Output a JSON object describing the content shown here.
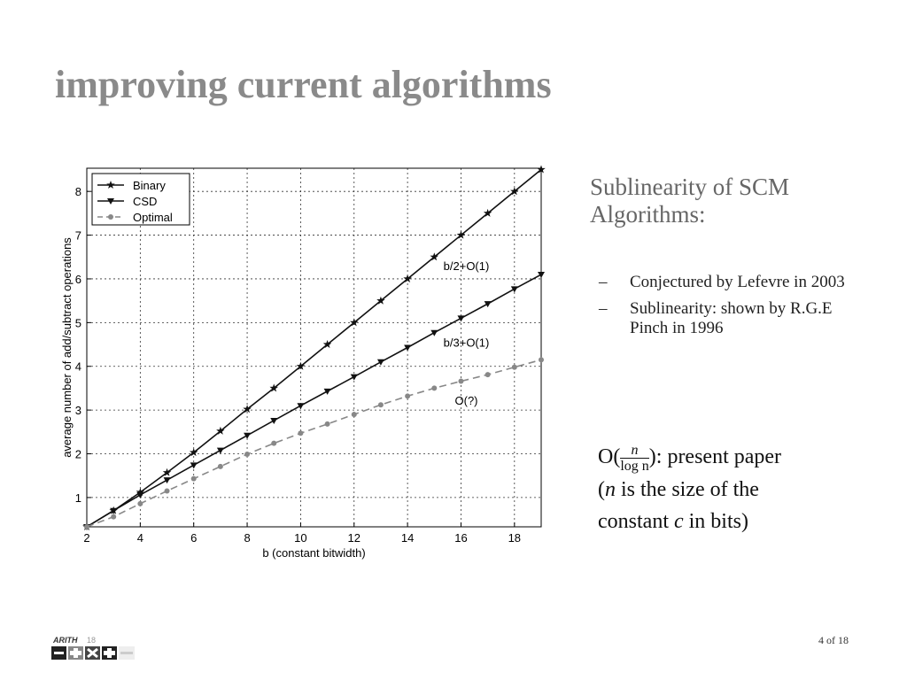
{
  "slide": {
    "title": "improving current algorithms",
    "subtitle": "Sublinearity of SCM Algorithms:",
    "bullets": [
      {
        "dash": "–",
        "text": "Conjectured by Lefevre in 2003"
      },
      {
        "dash": "–",
        "text": "Sublinearity: shown by R.G.E Pinch in 1996"
      }
    ],
    "math": {
      "prefix": "O(",
      "num": "n",
      "den": "log n",
      "suffix": "): present paper",
      "line2a": "(",
      "n": "n",
      "line2b": " is the size of the",
      "line3a": "constant ",
      "c": "c",
      "line3b": " in bits)"
    },
    "page_number": "4 of 18",
    "logo_text": "ARITH 18"
  },
  "chart_data": {
    "type": "line",
    "xlabel": "b (constant bitwidth)",
    "ylabel": "average number of add/subtract operations",
    "xlim": [
      2,
      19
    ],
    "ylim": [
      0.33,
      8.53
    ],
    "xticks": [
      2,
      4,
      6,
      8,
      10,
      12,
      14,
      16,
      18
    ],
    "yticks": [
      1,
      2,
      3,
      4,
      5,
      6,
      7,
      8
    ],
    "grid": true,
    "legend_position": "top-left",
    "x": [
      2,
      3,
      4,
      5,
      6,
      7,
      8,
      9,
      10,
      11,
      12,
      13,
      14,
      15,
      16,
      17,
      18,
      19
    ],
    "series": [
      {
        "name": "Binary",
        "marker": "star",
        "style": "solid",
        "color": "#111111",
        "values": [
          0.33,
          0.7,
          1.12,
          1.57,
          2.03,
          2.52,
          3.02,
          3.5,
          4.0,
          4.5,
          5.0,
          5.5,
          6.0,
          6.5,
          7.0,
          7.5,
          8.0,
          8.5
        ]
      },
      {
        "name": "CSD",
        "marker": "triangle-down",
        "style": "solid",
        "color": "#111111",
        "values": [
          0.33,
          0.7,
          1.06,
          1.4,
          1.74,
          2.08,
          2.42,
          2.76,
          3.1,
          3.43,
          3.76,
          4.1,
          4.43,
          4.77,
          5.1,
          5.43,
          5.77,
          6.1
        ]
      },
      {
        "name": "Optimal",
        "marker": "circle",
        "style": "dashed",
        "color": "#888888",
        "values": [
          0.33,
          0.56,
          0.86,
          1.15,
          1.43,
          1.71,
          1.99,
          2.24,
          2.47,
          2.68,
          2.9,
          3.12,
          3.32,
          3.5,
          3.66,
          3.81,
          3.98,
          4.15
        ]
      }
    ],
    "annotations": [
      {
        "text": "b/2+O(1)",
        "x": 16.2,
        "y": 6.2
      },
      {
        "text": "b/3+O(1)",
        "x": 16.2,
        "y": 4.45
      },
      {
        "text": "O(?)",
        "x": 16.2,
        "y": 3.12
      }
    ]
  }
}
